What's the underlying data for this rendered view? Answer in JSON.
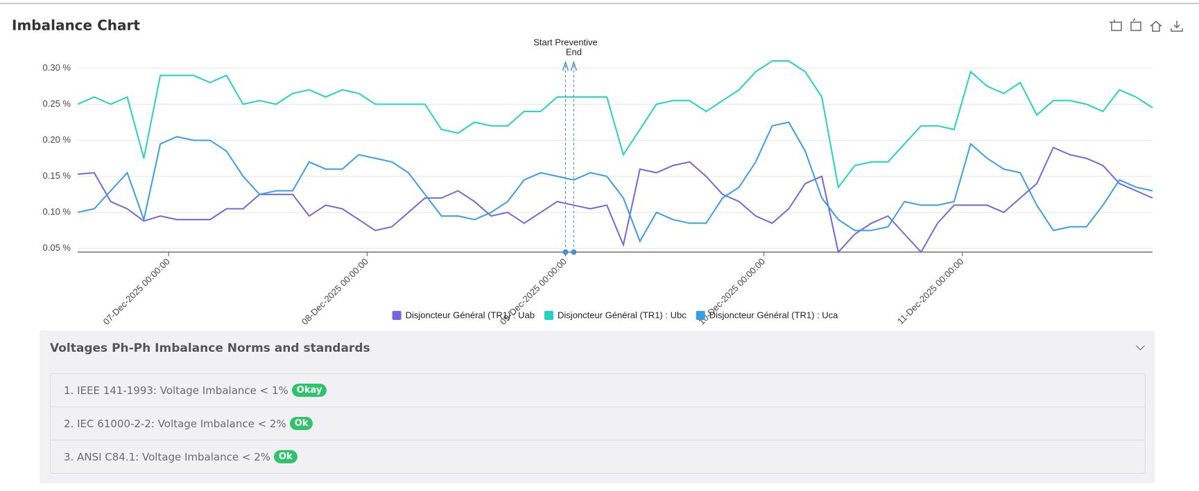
{
  "chart_data": {
    "type": "line",
    "title": "Imbalance Chart",
    "x": [
      "2025-12-06T13:00:00",
      "2025-12-06T15:00:00",
      "2025-12-06T17:00:00",
      "2025-12-06T19:00:00",
      "2025-12-06T21:00:00",
      "2025-12-06T23:00:00",
      "2025-12-07T01:00:00",
      "2025-12-07T03:00:00",
      "2025-12-07T05:00:00",
      "2025-12-07T07:00:00",
      "2025-12-07T09:00:00",
      "2025-12-07T11:00:00",
      "2025-12-07T13:00:00",
      "2025-12-07T15:00:00",
      "2025-12-07T17:00:00",
      "2025-12-07T19:00:00",
      "2025-12-07T21:00:00",
      "2025-12-07T23:00:00",
      "2025-12-08T01:00:00",
      "2025-12-08T03:00:00",
      "2025-12-08T05:00:00",
      "2025-12-08T07:00:00",
      "2025-12-08T09:00:00",
      "2025-12-08T11:00:00",
      "2025-12-08T13:00:00",
      "2025-12-08T15:00:00",
      "2025-12-08T17:00:00",
      "2025-12-08T19:00:00",
      "2025-12-08T21:00:00",
      "2025-12-08T23:00:00",
      "2025-12-09T01:00:00",
      "2025-12-09T03:00:00",
      "2025-12-09T05:00:00",
      "2025-12-09T07:00:00",
      "2025-12-09T09:00:00",
      "2025-12-09T11:00:00",
      "2025-12-09T13:00:00",
      "2025-12-09T15:00:00",
      "2025-12-09T17:00:00",
      "2025-12-09T19:00:00",
      "2025-12-09T21:00:00",
      "2025-12-09T23:00:00",
      "2025-12-10T01:00:00",
      "2025-12-10T03:00:00",
      "2025-12-10T05:00:00",
      "2025-12-10T07:00:00",
      "2025-12-10T09:00:00",
      "2025-12-10T11:00:00",
      "2025-12-10T13:00:00",
      "2025-12-10T15:00:00",
      "2025-12-10T17:00:00",
      "2025-12-10T19:00:00",
      "2025-12-10T21:00:00",
      "2025-12-10T23:00:00",
      "2025-12-11T01:00:00",
      "2025-12-11T03:00:00",
      "2025-12-11T05:00:00",
      "2025-12-11T07:00:00",
      "2025-12-11T09:00:00",
      "2025-12-11T11:00:00",
      "2025-12-11T13:00:00",
      "2025-12-11T15:00:00",
      "2025-12-11T17:00:00",
      "2025-12-11T19:00:00",
      "2025-12-11T21:00:00",
      "2025-12-11T23:00:00"
    ],
    "series": [
      {
        "name": "Disjoncteur Général (TR1) : Uab",
        "color": "#7367e0",
        "values": [
          0.153,
          0.155,
          0.115,
          0.105,
          0.088,
          0.095,
          0.09,
          0.09,
          0.09,
          0.105,
          0.105,
          0.125,
          0.125,
          0.125,
          0.095,
          0.11,
          0.105,
          0.09,
          0.075,
          0.08,
          0.1,
          0.12,
          0.12,
          0.13,
          0.115,
          0.095,
          0.1,
          0.085,
          0.1,
          0.115,
          0.11,
          0.105,
          0.11,
          0.055,
          0.16,
          0.155,
          0.165,
          0.17,
          0.15,
          0.125,
          0.115,
          0.095,
          0.085,
          0.105,
          0.14,
          0.15,
          0.045,
          0.07,
          0.085,
          0.095,
          0.07,
          0.045,
          0.085,
          0.11,
          0.11,
          0.11,
          0.1,
          0.12,
          0.14,
          0.19,
          0.18,
          0.175,
          0.165,
          0.14,
          0.13,
          0.12
        ]
      },
      {
        "name": "Disjoncteur Général (TR1) : Ubc",
        "color": "#22d3c5",
        "values": [
          0.25,
          0.26,
          0.25,
          0.26,
          0.175,
          0.29,
          0.29,
          0.29,
          0.28,
          0.29,
          0.25,
          0.255,
          0.25,
          0.265,
          0.27,
          0.26,
          0.27,
          0.265,
          0.25,
          0.25,
          0.25,
          0.25,
          0.215,
          0.21,
          0.225,
          0.22,
          0.22,
          0.24,
          0.24,
          0.26,
          0.26,
          0.26,
          0.26,
          0.18,
          0.215,
          0.25,
          0.255,
          0.255,
          0.24,
          0.255,
          0.27,
          0.295,
          0.31,
          0.31,
          0.295,
          0.26,
          0.135,
          0.165,
          0.17,
          0.17,
          0.195,
          0.22,
          0.22,
          0.215,
          0.295,
          0.275,
          0.265,
          0.28,
          0.235,
          0.255,
          0.255,
          0.25,
          0.24,
          0.27,
          0.26,
          0.245
        ]
      },
      {
        "name": "Disjoncteur Général (TR1) : Uca",
        "color": "#3a9ee6",
        "values": [
          0.1,
          0.105,
          0.13,
          0.155,
          0.09,
          0.195,
          0.205,
          0.2,
          0.2,
          0.185,
          0.15,
          0.125,
          0.13,
          0.13,
          0.17,
          0.16,
          0.16,
          0.18,
          0.175,
          0.17,
          0.155,
          0.125,
          0.095,
          0.095,
          0.09,
          0.1,
          0.115,
          0.145,
          0.155,
          0.15,
          0.145,
          0.155,
          0.15,
          0.12,
          0.06,
          0.1,
          0.09,
          0.085,
          0.085,
          0.12,
          0.135,
          0.17,
          0.22,
          0.225,
          0.185,
          0.12,
          0.09,
          0.075,
          0.075,
          0.08,
          0.115,
          0.11,
          0.11,
          0.115,
          0.195,
          0.175,
          0.16,
          0.155,
          0.11,
          0.075,
          0.08,
          0.08,
          0.11,
          0.145,
          0.135,
          0.13
        ]
      }
    ],
    "xlim": [
      "2025-12-06T13:00:00",
      "2025-12-11T23:00:00"
    ],
    "xticks": [
      {
        "value": "2025-12-07T00:00:00",
        "label": "07-Dec-2025 00:00:00"
      },
      {
        "value": "2025-12-08T00:00:00",
        "label": "08-Dec-2025 00:00:00"
      },
      {
        "value": "2025-12-09T00:00:00",
        "label": "09-Dec-2025 00:00:00"
      },
      {
        "value": "2025-12-10T00:00:00",
        "label": "10-Dec-2025 00:00:00"
      },
      {
        "value": "2025-12-11T00:00:00",
        "label": "11-Dec-2025 00:00:00"
      }
    ],
    "ylim": [
      0.045,
      0.31
    ],
    "yticks": [
      {
        "value": 0.05,
        "label": "0.05 %"
      },
      {
        "value": 0.1,
        "label": "0.10 %"
      },
      {
        "value": 0.15,
        "label": "0.15 %"
      },
      {
        "value": 0.2,
        "label": "0.20 %"
      },
      {
        "value": 0.25,
        "label": "0.25 %"
      },
      {
        "value": 0.3,
        "label": "0.30 %"
      }
    ],
    "grid": true,
    "annotations": [
      {
        "x": "2025-12-09T00:00:00",
        "label": "Start Preventive"
      },
      {
        "x": "2025-12-09T01:00:00",
        "label": "End"
      }
    ]
  },
  "norms": {
    "title": "Voltages Ph-Ph Imbalance Norms and standards",
    "items": [
      {
        "text": "1. IEEE 141-1993: Voltage Imbalance < 1%",
        "badge": "Okay"
      },
      {
        "text": "2. IEC 61000-2-2: Voltage Imbalance < 2%",
        "badge": "Ok"
      },
      {
        "text": "3. ANSI C84.1: Voltage Imbalance < 2%",
        "badge": "Ok"
      }
    ]
  }
}
